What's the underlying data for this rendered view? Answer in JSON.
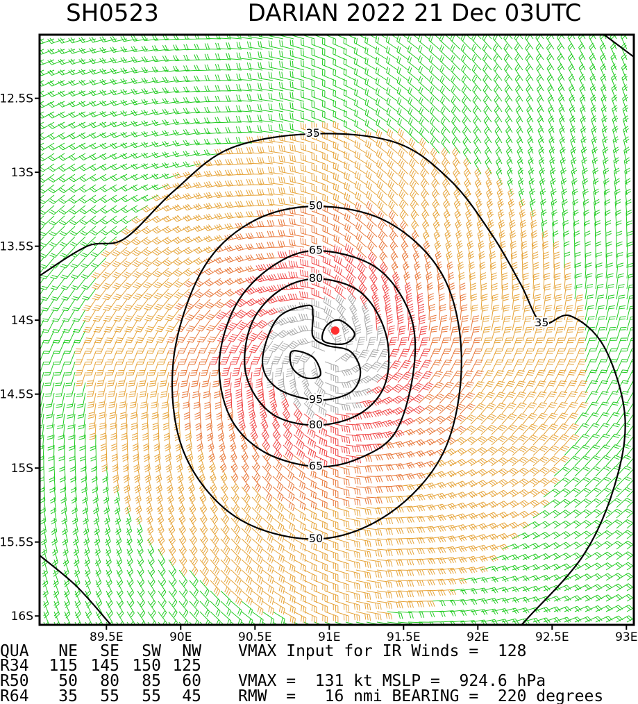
{
  "header": {
    "id": "SH0523",
    "title": "DARIAN 2022 21 Dec 03UTC"
  },
  "map": {
    "xlim": [
      89.05,
      93.05
    ],
    "ylim": [
      -16.06,
      -12.07
    ],
    "xticks": [
      {
        "value": 89.5,
        "label": "89.5E"
      },
      {
        "value": 90,
        "label": "90E"
      },
      {
        "value": 90.5,
        "label": "90.5E"
      },
      {
        "value": 91,
        "label": "91E"
      },
      {
        "value": 91.5,
        "label": "91.5E"
      },
      {
        "value": 92,
        "label": "92E"
      },
      {
        "value": 92.5,
        "label": "92.5E"
      },
      {
        "value": 93,
        "label": "93E"
      }
    ],
    "yticks": [
      {
        "value": -12.5,
        "label": "12.5S"
      },
      {
        "value": -13,
        "label": "13S"
      },
      {
        "value": -13.5,
        "label": "13.5S"
      },
      {
        "value": -14,
        "label": "14S"
      },
      {
        "value": -14.5,
        "label": "14.5S"
      },
      {
        "value": -15,
        "label": "15S"
      },
      {
        "value": -15.5,
        "label": "15.5S"
      },
      {
        "value": -16,
        "label": "16S"
      }
    ],
    "center": {
      "lon": 91.04,
      "lat": -14.07,
      "color": "#ff3030"
    },
    "contours": [
      {
        "level": 35,
        "closed": false,
        "label_points": [
          5,
          10
        ],
        "lon": [
          89.05,
          89.37,
          89.62,
          89.95,
          90.33,
          90.89,
          91.45,
          91.82,
          92.1,
          92.29,
          92.43,
          92.62,
          92.85,
          92.99,
          92.92,
          92.71,
          92.34,
          92.29
        ],
        "lat": [
          -13.7,
          -13.5,
          -13.45,
          -13.13,
          -12.84,
          -12.74,
          -12.8,
          -13.06,
          -13.43,
          -13.76,
          -14.02,
          -13.97,
          -14.18,
          -14.65,
          -15.12,
          -15.59,
          -16.01,
          -16.06
        ]
      },
      {
        "closed": false,
        "lon": [
          89.05,
          89.3,
          89.53
        ],
        "lat": [
          -15.59,
          -15.8,
          -16.06
        ]
      },
      {
        "closed": false,
        "lon": [
          92.85,
          93.05
        ],
        "lat": [
          -12.07,
          -12.22
        ]
      },
      {
        "level": 50,
        "closed": true,
        "label_points": [
          0,
          6
        ],
        "lon": [
          90.91,
          91.4,
          91.77,
          91.89,
          91.77,
          91.4,
          90.91,
          90.37,
          90.02,
          89.95,
          90.14,
          90.47
        ],
        "lat": [
          -13.23,
          -13.34,
          -13.71,
          -14.28,
          -14.89,
          -15.31,
          -15.48,
          -15.33,
          -14.89,
          -14.28,
          -13.67,
          -13.34
        ]
      },
      {
        "level": 65,
        "closed": true,
        "label_points": [
          0,
          6
        ],
        "lon": [
          90.91,
          91.31,
          91.54,
          91.57,
          91.45,
          91.21,
          90.91,
          90.56,
          90.33,
          90.26,
          90.37,
          90.61
        ],
        "lat": [
          -13.53,
          -13.64,
          -13.95,
          -14.32,
          -14.75,
          -14.93,
          -14.99,
          -14.89,
          -14.65,
          -14.28,
          -13.9,
          -13.64
        ]
      },
      {
        "level": 80,
        "closed": true,
        "label_points": [
          0,
          5
        ],
        "lon": [
          90.91,
          91.21,
          91.38,
          91.38,
          91.21,
          90.91,
          90.61,
          90.44,
          90.47,
          90.65
        ],
        "lat": [
          -13.72,
          -13.81,
          -14.09,
          -14.42,
          -14.63,
          -14.71,
          -14.63,
          -14.37,
          -14.04,
          -13.81
        ]
      },
      {
        "level": 95,
        "closed": true,
        "label_points": [
          4
        ],
        "lon": [
          90.86,
          90.65,
          90.55,
          90.65,
          90.91,
          91.14,
          91.21,
          91.14,
          90.98,
          90.89,
          90.89
        ],
        "lat": [
          -13.9,
          -13.99,
          -14.28,
          -14.46,
          -14.54,
          -14.49,
          -14.35,
          -14.21,
          -14.17,
          -14.11,
          -13.97
        ]
      },
      {
        "closed": true,
        "lon": [
          90.98,
          91.07,
          91.17,
          91.1,
          90.96
        ],
        "lat": [
          -14.04,
          -14.0,
          -14.09,
          -14.16,
          -14.14
        ]
      },
      {
        "closed": true,
        "lon": [
          90.75,
          90.89,
          90.94,
          90.84,
          90.75
        ],
        "lat": [
          -14.21,
          -14.25,
          -14.37,
          -14.39,
          -14.32
        ]
      }
    ]
  },
  "table": {
    "header": [
      "QUA",
      "NE",
      "SE",
      "SW",
      "NW"
    ],
    "rows": [
      [
        "R34",
        115,
        145,
        150,
        125
      ],
      [
        "R50",
        50,
        80,
        85,
        60
      ],
      [
        "R64",
        35,
        55,
        55,
        45
      ]
    ]
  },
  "notes": [
    "VMAX Input for IR Winds =  128",
    null,
    "VMAX =  131 kt MSLP =  924.6 hPa",
    "RMW  =   16 nmi BEARING =  220 degrees"
  ]
}
